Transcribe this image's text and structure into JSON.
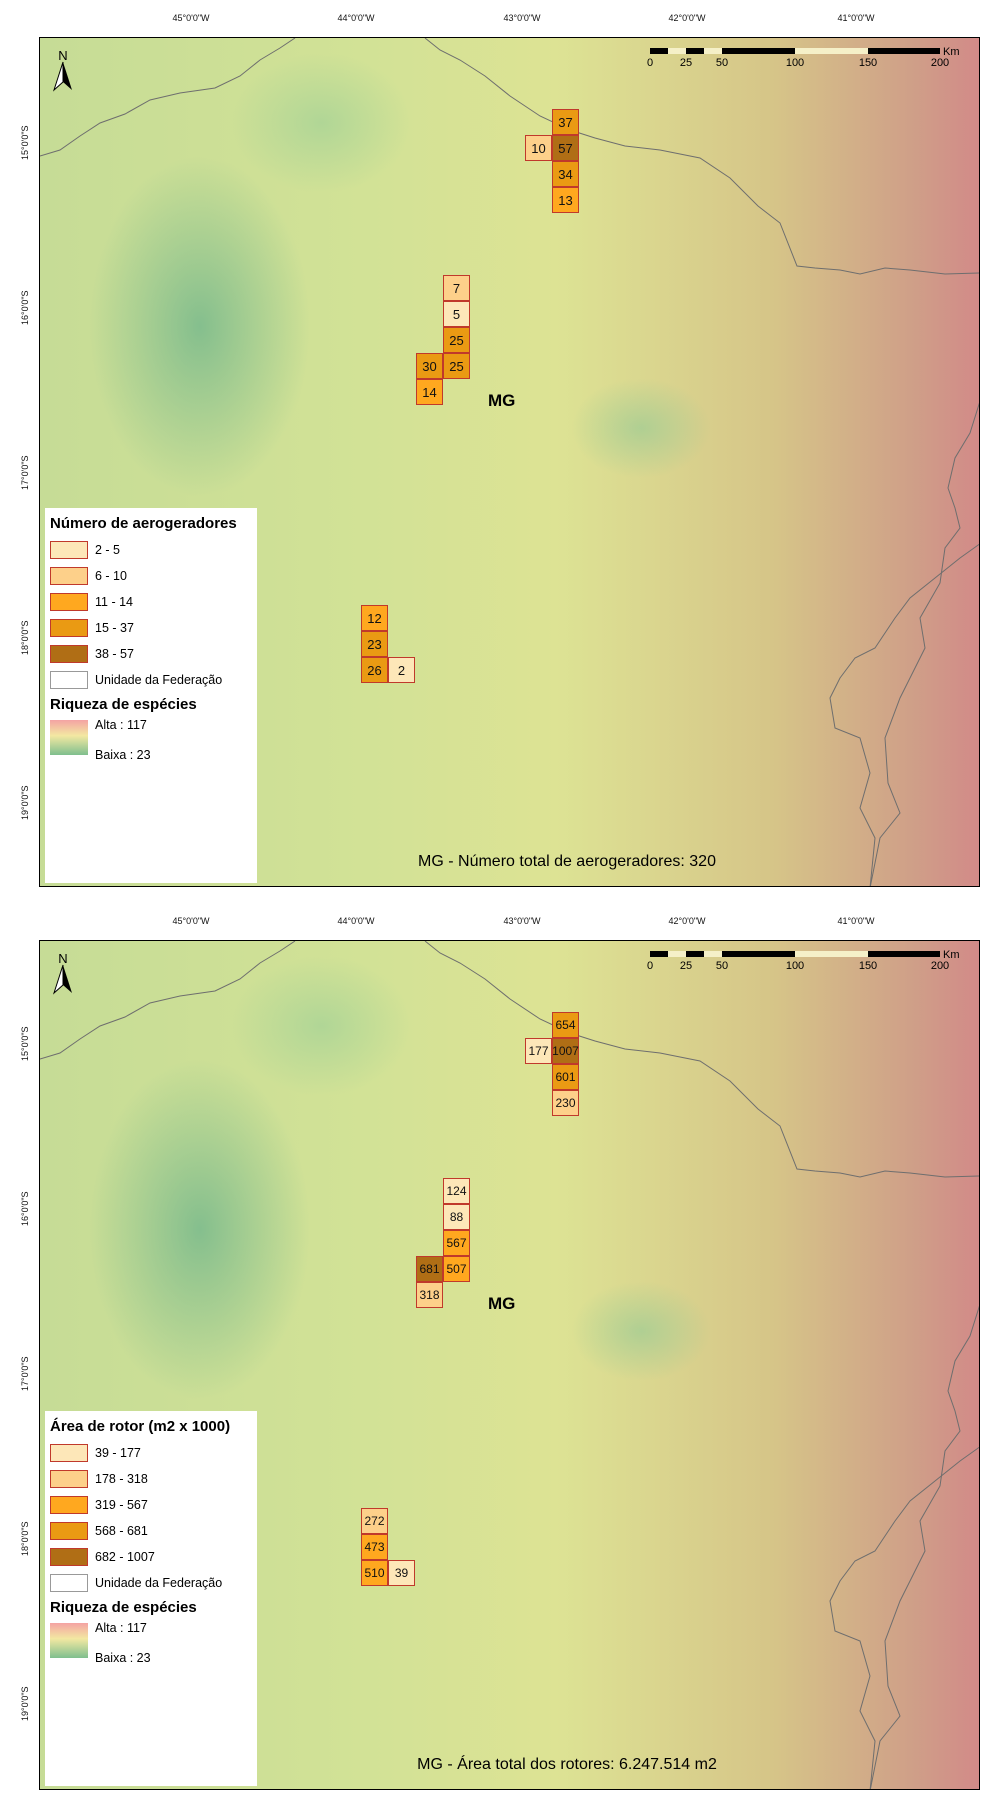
{
  "maps": [
    {
      "lon_labels": [
        "45°0'0\"W",
        "44°0'0\"W",
        "43°0'0\"W",
        "42°0'0\"W",
        "41°0'0\"W"
      ],
      "lat_labels": [
        "15°0'0\"S",
        "16°0'0\"S",
        "17°0'0\"S",
        "18°0'0\"S",
        "19°0'0\"S"
      ],
      "north_label": "N",
      "scale_labels": [
        "0",
        "25",
        "50",
        "100",
        "150",
        "200"
      ],
      "scale_unit": "Km",
      "region_label": "MG",
      "cells": [
        "37",
        "10",
        "57",
        "34",
        "13",
        "7",
        "5",
        "25",
        "30",
        "25",
        "14",
        "12",
        "23",
        "26",
        "2"
      ],
      "legend": {
        "title": "Número de aerogeradores",
        "items": [
          "2 - 5",
          "6 - 10",
          "11 - 14",
          "15 - 37",
          "38 - 57",
          "Unidade da Federação"
        ],
        "colors": [
          "#fde7b8",
          "#fdd08a",
          "#ffa81f",
          "#ea9a13",
          "#b06e15"
        ],
        "richness_title": "Riqueza de espécies",
        "richness_high": "Alta : 117",
        "richness_low": "Baixa : 23"
      },
      "footer": "MG - Número total de aerogeradores: 320"
    },
    {
      "lon_labels": [
        "45°0'0\"W",
        "44°0'0\"W",
        "43°0'0\"W",
        "42°0'0\"W",
        "41°0'0\"W"
      ],
      "lat_labels": [
        "15°0'0\"S",
        "16°0'0\"S",
        "17°0'0\"S",
        "18°0'0\"S",
        "19°0'0\"S"
      ],
      "north_label": "N",
      "scale_labels": [
        "0",
        "25",
        "50",
        "100",
        "150",
        "200"
      ],
      "scale_unit": "Km",
      "region_label": "MG",
      "cells": [
        "654",
        "177",
        "1007",
        "601",
        "230",
        "124",
        "88",
        "567",
        "681",
        "507",
        "318",
        "272",
        "473",
        "510",
        "39"
      ],
      "legend": {
        "title": "Área de rotor (m2 x 1000)",
        "items": [
          "39 - 177",
          "178 - 318",
          "319 - 567",
          "568 - 681",
          "682 - 1007",
          "Unidade da Federação"
        ],
        "colors": [
          "#fde7b8",
          "#fdd08a",
          "#ffa81f",
          "#ea9a13",
          "#b06e15"
        ],
        "richness_title": "Riqueza de espécies",
        "richness_high": "Alta : 117",
        "richness_low": "Baixa : 23"
      },
      "footer": "MG - Área total dos rotores: 6.247.514 m2"
    }
  ]
}
